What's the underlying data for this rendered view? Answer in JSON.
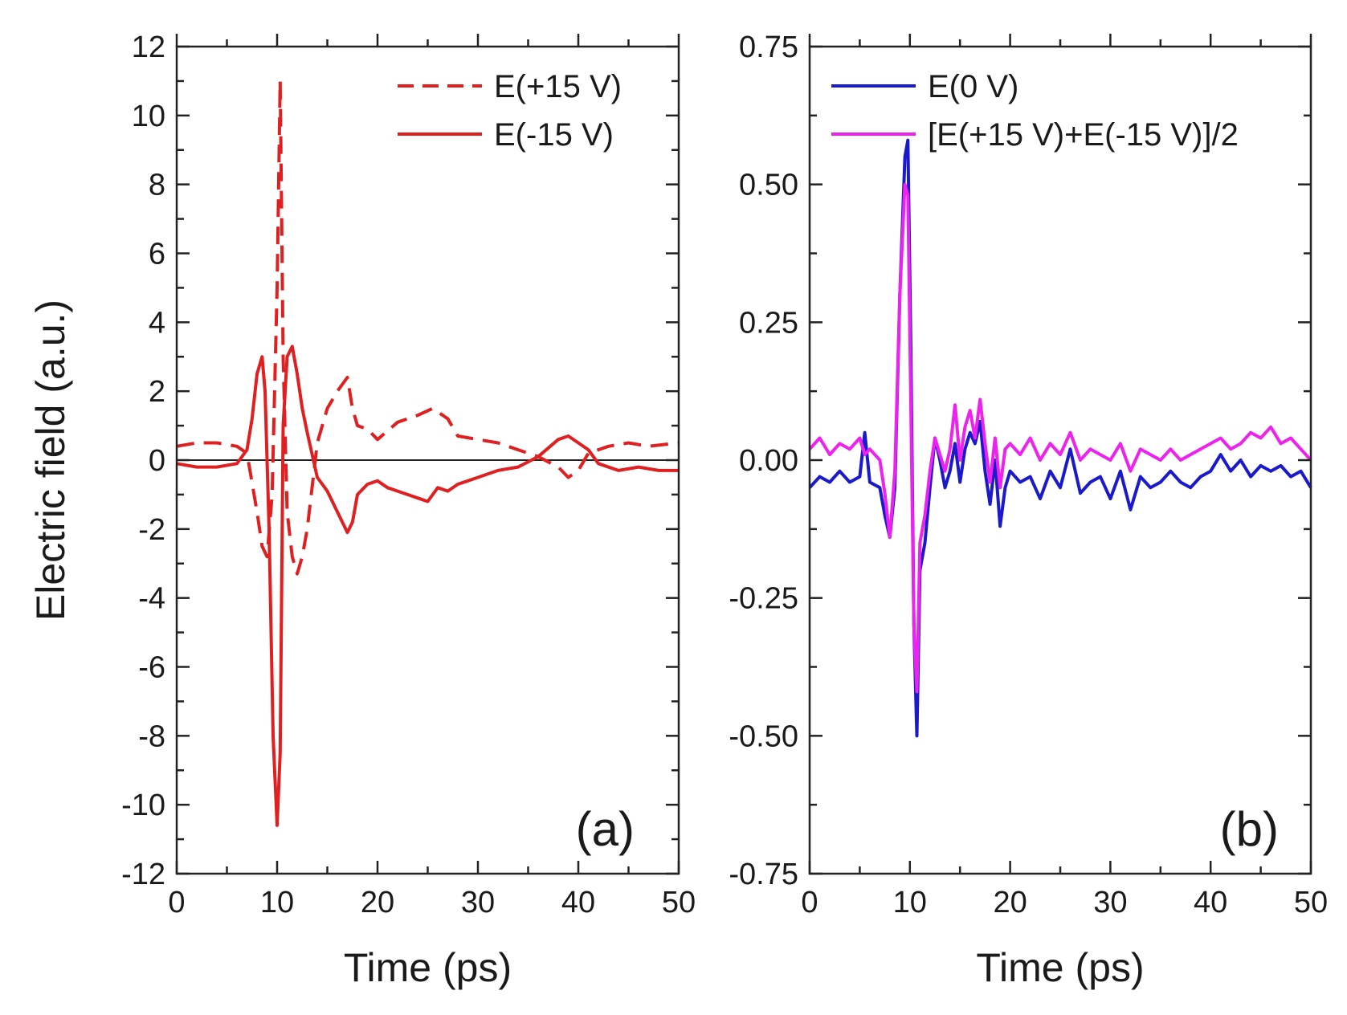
{
  "chart_data": [
    {
      "panel": "(a)",
      "type": "line",
      "xlabel": "Time (ps)",
      "ylabel": "Electric field (a.u.)",
      "xlim": [
        0,
        50
      ],
      "ylim": [
        -12,
        12
      ],
      "xticks": [
        "0",
        "10",
        "20",
        "30",
        "40",
        "50"
      ],
      "yticks": [
        "-12",
        "-10",
        "-8",
        "-6",
        "-4",
        "-2",
        "0",
        "2",
        "4",
        "6",
        "8",
        "10",
        "12"
      ],
      "legend_position": "top-right",
      "zero_line": true,
      "series": [
        {
          "name": "E(+15 V)",
          "color": "#e02020",
          "style": "dashed",
          "x": [
            0,
            2,
            4,
            6,
            7,
            8,
            8.5,
            9,
            9.5,
            10,
            10.3,
            10.6,
            11,
            11.5,
            12,
            12.5,
            13,
            14,
            15,
            16,
            17,
            17.5,
            18,
            19,
            20,
            22,
            24,
            25.5,
            27,
            28,
            30,
            32,
            34,
            36,
            38,
            39,
            40,
            41,
            43,
            45,
            47,
            50
          ],
          "y": [
            0.4,
            0.5,
            0.5,
            0.4,
            0.2,
            -1.5,
            -2.5,
            -2.8,
            -1.0,
            5.0,
            11.0,
            3.0,
            -1.5,
            -2.8,
            -3.3,
            -2.8,
            -2.0,
            0.5,
            1.5,
            2.0,
            2.4,
            1.5,
            1.0,
            0.9,
            0.6,
            1.1,
            1.3,
            1.5,
            1.2,
            0.7,
            0.6,
            0.5,
            0.3,
            0.1,
            -0.2,
            -0.5,
            -0.3,
            0.2,
            0.4,
            0.5,
            0.4,
            0.5
          ]
        },
        {
          "name": "E(-15 V)",
          "color": "#e02020",
          "style": "solid",
          "x": [
            0,
            2,
            4,
            6,
            7,
            7.5,
            8,
            8.5,
            8.8,
            9.2,
            9.6,
            10,
            10.3,
            10.6,
            11,
            11.5,
            12,
            12.5,
            13,
            14,
            15,
            16,
            17,
            17.5,
            18,
            19,
            20,
            21,
            22,
            23,
            24,
            25,
            26,
            27,
            28,
            29,
            30,
            32,
            34,
            36,
            38,
            39,
            40,
            41,
            42,
            44,
            46,
            48,
            50
          ],
          "y": [
            -0.1,
            -0.2,
            -0.2,
            -0.1,
            0.3,
            1.2,
            2.5,
            3.0,
            2.0,
            -2.0,
            -8.0,
            -10.6,
            -8.5,
            1.0,
            3.0,
            3.3,
            2.5,
            1.5,
            0.8,
            -0.5,
            -0.9,
            -1.5,
            -2.1,
            -1.8,
            -1.0,
            -0.7,
            -0.6,
            -0.8,
            -0.9,
            -1.0,
            -1.1,
            -1.2,
            -0.8,
            -0.9,
            -0.7,
            -0.6,
            -0.5,
            -0.3,
            -0.2,
            0.1,
            0.6,
            0.7,
            0.5,
            0.3,
            -0.1,
            -0.3,
            -0.2,
            -0.3,
            -0.3
          ]
        }
      ]
    },
    {
      "panel": "(b)",
      "type": "line",
      "xlabel": "Time (ps)",
      "ylabel": "",
      "xlim": [
        0,
        50
      ],
      "ylim": [
        -0.75,
        0.75
      ],
      "xticks": [
        "0",
        "10",
        "20",
        "30",
        "40",
        "50"
      ],
      "yticks": [
        "-0.75",
        "-0.50",
        "-0.25",
        "0.00",
        "0.25",
        "0.50",
        "0.75"
      ],
      "legend_position": "top-right",
      "series": [
        {
          "name": "E(0 V)",
          "color": "#1a1acc",
          "style": "solid",
          "x": [
            0,
            1,
            2,
            3,
            4,
            5,
            5.5,
            6,
            7,
            7.5,
            8,
            8.5,
            9,
            9.5,
            9.8,
            10.1,
            10.4,
            10.7,
            11,
            11.5,
            12,
            12.5,
            13,
            13.5,
            14,
            14.5,
            15,
            15.5,
            16,
            16.5,
            17,
            17.5,
            18,
            18.5,
            19,
            19.5,
            20,
            21,
            22,
            23,
            24,
            25,
            26,
            27,
            28,
            29,
            30,
            31,
            32,
            33,
            34,
            35,
            36,
            37,
            38,
            39,
            40,
            41,
            42,
            43,
            44,
            45,
            46,
            47,
            48,
            49,
            50
          ],
          "y": [
            -0.05,
            -0.03,
            -0.04,
            -0.02,
            -0.04,
            -0.03,
            0.05,
            -0.04,
            -0.05,
            -0.1,
            -0.14,
            -0.05,
            0.3,
            0.55,
            0.58,
            0.2,
            -0.3,
            -0.5,
            -0.2,
            -0.15,
            -0.05,
            0.04,
            0.0,
            -0.05,
            -0.02,
            0.03,
            -0.04,
            0.02,
            0.05,
            0.03,
            0.07,
            -0.02,
            -0.08,
            0.0,
            -0.12,
            -0.05,
            -0.02,
            -0.04,
            -0.03,
            -0.07,
            -0.02,
            -0.05,
            0.02,
            -0.06,
            -0.04,
            -0.03,
            -0.07,
            -0.02,
            -0.09,
            -0.03,
            -0.05,
            -0.04,
            -0.02,
            -0.04,
            -0.05,
            -0.03,
            -0.02,
            0.01,
            -0.02,
            0.0,
            -0.03,
            -0.01,
            -0.02,
            -0.01,
            -0.03,
            -0.02,
            -0.05
          ]
        },
        {
          "name": "[E(+15 V)+E(-15 V)]/2",
          "color": "#ee22ee",
          "style": "solid",
          "x": [
            0,
            1,
            2,
            3,
            4,
            5,
            5.5,
            6,
            7,
            7.5,
            8,
            8.5,
            9,
            9.5,
            9.8,
            10.1,
            10.4,
            10.7,
            11,
            11.5,
            12,
            12.5,
            13,
            13.5,
            14,
            14.5,
            15,
            15.5,
            16,
            16.5,
            17,
            17.5,
            18,
            18.5,
            19,
            19.5,
            20,
            21,
            22,
            23,
            24,
            25,
            26,
            27,
            28,
            29,
            30,
            31,
            32,
            33,
            34,
            35,
            36,
            37,
            38,
            39,
            40,
            41,
            42,
            43,
            44,
            45,
            46,
            47,
            48,
            49,
            50
          ],
          "y": [
            0.02,
            0.04,
            0.01,
            0.03,
            0.02,
            0.04,
            0.01,
            0.02,
            0.0,
            -0.06,
            -0.14,
            -0.02,
            0.3,
            0.5,
            0.48,
            0.1,
            -0.3,
            -0.42,
            -0.15,
            -0.1,
            -0.02,
            0.04,
            0.01,
            -0.02,
            0.02,
            0.1,
            0.0,
            0.06,
            0.09,
            0.04,
            0.11,
            0.03,
            -0.04,
            0.04,
            -0.05,
            0.02,
            0.03,
            0.01,
            0.04,
            0.0,
            0.03,
            0.01,
            0.05,
            0.0,
            0.02,
            0.01,
            0.0,
            0.03,
            -0.02,
            0.02,
            0.01,
            0.0,
            0.02,
            0.0,
            0.01,
            0.02,
            0.03,
            0.04,
            0.02,
            0.03,
            0.05,
            0.04,
            0.06,
            0.03,
            0.04,
            0.02,
            0.0
          ]
        }
      ]
    }
  ]
}
